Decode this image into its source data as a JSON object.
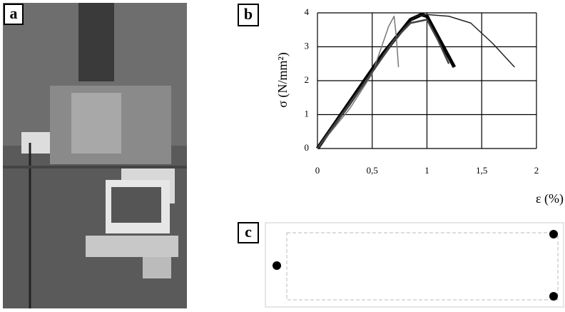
{
  "panel_labels": [
    "a",
    "b",
    "c"
  ],
  "chart_data": {
    "type": "line",
    "y_label": "σ (N/mm²)",
    "x_label": "ε (%)",
    "xlim": [
      0,
      2
    ],
    "xticks": [
      0,
      {
        "value": 0.5,
        "label": "0,5"
      },
      1,
      {
        "value": 1.5,
        "label": "1,5"
      },
      2
    ],
    "ylim": [
      0,
      4
    ],
    "yticks": [
      0,
      1,
      2,
      3,
      4
    ],
    "grid": true,
    "series": [
      {
        "color": "#000000",
        "x": [
          0,
          0.3,
          0.6,
          0.85,
          0.95,
          1.0,
          1.1,
          1.25
        ],
        "values": [
          0,
          1.4,
          2.8,
          3.8,
          3.95,
          3.9,
          3.3,
          2.4
        ]
      },
      {
        "color": "#222222",
        "x": [
          0,
          0.3,
          0.6,
          0.8,
          0.9,
          1.0,
          1.2,
          1.4,
          1.6,
          1.8
        ],
        "values": [
          0,
          1.3,
          2.7,
          3.6,
          3.9,
          3.95,
          3.9,
          3.7,
          3.1,
          2.4
        ]
      },
      {
        "color": "#777777",
        "x": [
          0,
          0.3,
          0.5,
          0.65,
          0.7,
          0.72,
          0.74
        ],
        "values": [
          0,
          1.2,
          2.2,
          3.6,
          3.9,
          3.3,
          2.4
        ]
      },
      {
        "color": "#444444",
        "x": [
          0,
          0.4,
          0.7,
          0.85,
          1.0,
          1.1,
          1.2
        ],
        "values": [
          0,
          1.8,
          3.2,
          3.7,
          3.8,
          3.2,
          2.5
        ]
      }
    ]
  }
}
